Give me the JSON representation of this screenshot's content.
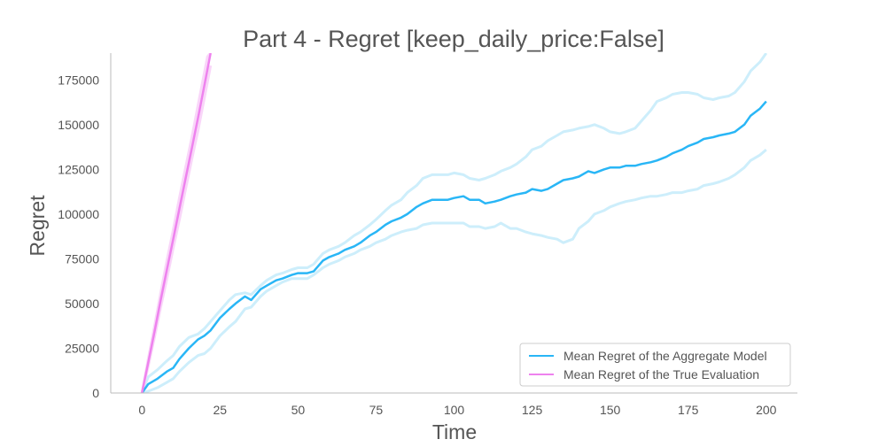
{
  "chart_data": {
    "type": "line",
    "title": "Part 4 - Regret [keep_daily_price:False]",
    "xlabel": "Time",
    "ylabel": "Regret",
    "xlim": [
      -10,
      210
    ],
    "ylim": [
      0,
      190000
    ],
    "xticks": [
      0,
      25,
      50,
      75,
      100,
      125,
      150,
      175,
      200
    ],
    "yticks": [
      0,
      25000,
      50000,
      75000,
      100000,
      125000,
      150000,
      175000
    ],
    "grid": false,
    "legend_position": "bottom-right",
    "series": [
      {
        "name": "Mean Regret of the Aggregate Model",
        "color": "#29b6f6",
        "band_color": "#cdeefb",
        "x": [
          0,
          2,
          5,
          8,
          10,
          12,
          15,
          18,
          20,
          22,
          25,
          28,
          30,
          33,
          35,
          38,
          40,
          43,
          45,
          48,
          50,
          53,
          55,
          58,
          60,
          63,
          65,
          68,
          70,
          73,
          75,
          78,
          80,
          83,
          85,
          88,
          90,
          93,
          95,
          98,
          100,
          103,
          105,
          108,
          110,
          113,
          115,
          118,
          120,
          123,
          125,
          128,
          130,
          133,
          135,
          138,
          140,
          143,
          145,
          148,
          150,
          153,
          155,
          158,
          160,
          163,
          165,
          168,
          170,
          173,
          175,
          178,
          180,
          183,
          185,
          188,
          190,
          193,
          195,
          198,
          200
        ],
        "values": [
          0,
          5000,
          8000,
          12000,
          14000,
          19000,
          25000,
          30000,
          32000,
          35000,
          42000,
          47000,
          50000,
          54000,
          52000,
          58000,
          60000,
          63000,
          64000,
          66000,
          67000,
          67000,
          68000,
          74000,
          76000,
          78000,
          80000,
          82000,
          84000,
          88000,
          90000,
          94000,
          96000,
          98000,
          100000,
          104000,
          106000,
          108000,
          108000,
          108000,
          109000,
          110000,
          108000,
          108000,
          106000,
          107000,
          108000,
          110000,
          111000,
          112000,
          114000,
          113000,
          114000,
          117000,
          119000,
          120000,
          121000,
          124000,
          123000,
          125000,
          126000,
          126000,
          127000,
          127000,
          128000,
          129000,
          130000,
          132000,
          134000,
          136000,
          138000,
          140000,
          142000,
          143000,
          144000,
          145000,
          146000,
          150000,
          155000,
          159000,
          163000
        ],
        "lower": [
          0,
          1000,
          3000,
          6000,
          8000,
          12000,
          17000,
          21000,
          22000,
          25000,
          32000,
          37000,
          40000,
          47000,
          48000,
          54000,
          57000,
          60000,
          62000,
          64000,
          64000,
          64000,
          66000,
          70000,
          72000,
          74000,
          76000,
          78000,
          80000,
          82000,
          84000,
          86000,
          88000,
          90000,
          91000,
          92000,
          94000,
          95000,
          95000,
          95000,
          95000,
          95000,
          93000,
          93000,
          92000,
          93000,
          95000,
          92000,
          92000,
          90000,
          89000,
          88000,
          87000,
          86000,
          84000,
          86000,
          92000,
          96000,
          100000,
          102000,
          104000,
          106000,
          107000,
          108000,
          109000,
          110000,
          110000,
          111000,
          112000,
          112000,
          113000,
          114000,
          116000,
          117000,
          118000,
          120000,
          122000,
          126000,
          130000,
          133000,
          136000
        ],
        "upper": [
          0,
          9000,
          13000,
          18000,
          21000,
          26000,
          31000,
          33000,
          36000,
          40000,
          46000,
          52000,
          55000,
          56000,
          55000,
          60000,
          63000,
          66000,
          67000,
          69000,
          70000,
          70000,
          72000,
          78000,
          80000,
          82000,
          84000,
          88000,
          90000,
          94000,
          97000,
          102000,
          105000,
          108000,
          112000,
          116000,
          120000,
          122000,
          122000,
          122000,
          123000,
          122000,
          120000,
          119000,
          120000,
          122000,
          124000,
          126000,
          128000,
          132000,
          136000,
          138000,
          141000,
          144000,
          146000,
          147000,
          148000,
          149000,
          150000,
          148000,
          146000,
          145000,
          146000,
          148000,
          152000,
          158000,
          163000,
          165000,
          167000,
          168000,
          168000,
          167000,
          165000,
          164000,
          165000,
          166000,
          168000,
          174000,
          180000,
          185000,
          190000
        ]
      },
      {
        "name": "Mean Regret of the True Evaluation",
        "color": "#ee82ee",
        "band_color": "#f9d6f9",
        "x": [
          0,
          2,
          4,
          6,
          8,
          10,
          12,
          14,
          16,
          18,
          20,
          21,
          22
        ],
        "values": [
          0,
          17000,
          34000,
          52000,
          69000,
          86000,
          103000,
          120000,
          137000,
          154000,
          172000,
          181000,
          190000
        ],
        "lower": [
          0,
          15000,
          31000,
          48000,
          64000,
          81000,
          97000,
          114000,
          131000,
          147000,
          165000,
          174000,
          183000
        ],
        "upper": [
          0,
          19000,
          37000,
          56000,
          74000,
          91000,
          109000,
          126000,
          143000,
          161000,
          179000,
          188000,
          190000
        ]
      }
    ]
  }
}
